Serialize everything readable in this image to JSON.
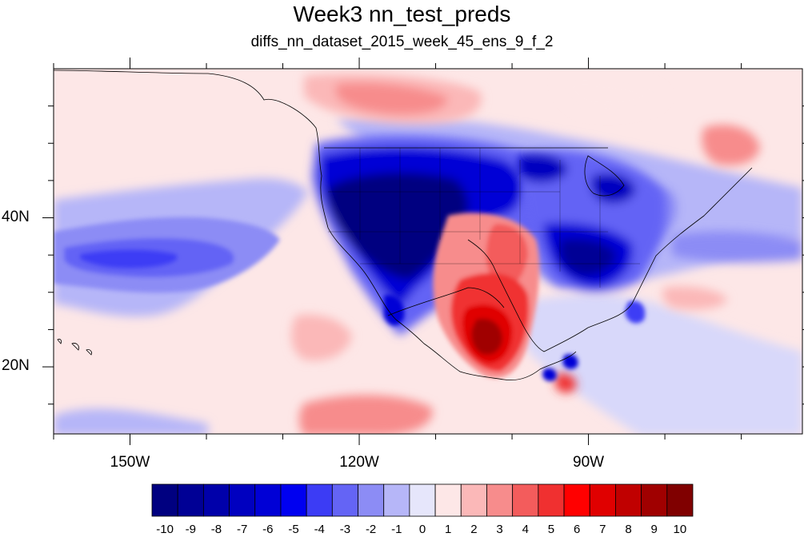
{
  "title": "Week3 nn_test_preds",
  "subtitle": "diffs_nn_dataset_2015_week_45_ens_9_f_2",
  "map": {
    "lon_range": [
      -160,
      -62
    ],
    "lat_range": [
      11,
      60
    ],
    "x_ticks": [
      {
        "lon": -150,
        "label": "150W"
      },
      {
        "lon": -120,
        "label": "120W"
      },
      {
        "lon": -90,
        "label": "90W"
      }
    ],
    "y_ticks": [
      {
        "lat": 40,
        "label": "40N"
      },
      {
        "lat": 20,
        "label": "20N"
      }
    ],
    "background_color": "#fde7e7"
  },
  "colorbar": {
    "labels": [
      "-10",
      "-9",
      "-8",
      "-7",
      "-6",
      "-5",
      "-4",
      "-3",
      "-2",
      "-1",
      "0",
      "1",
      "2",
      "3",
      "4",
      "5",
      "6",
      "7",
      "8",
      "9",
      "10"
    ],
    "colors": [
      "#000080",
      "#000095",
      "#0000aa",
      "#0000c0",
      "#0000d6",
      "#0000f0",
      "#3c3cf5",
      "#6464f5",
      "#8c8cf5",
      "#b6b6f8",
      "#e6e6fb",
      "#fde7e7",
      "#fbb8b8",
      "#f78c8c",
      "#f35c5c",
      "#f03030",
      "#ff0000",
      "#e00000",
      "#c00000",
      "#a00000",
      "#800000"
    ]
  }
}
